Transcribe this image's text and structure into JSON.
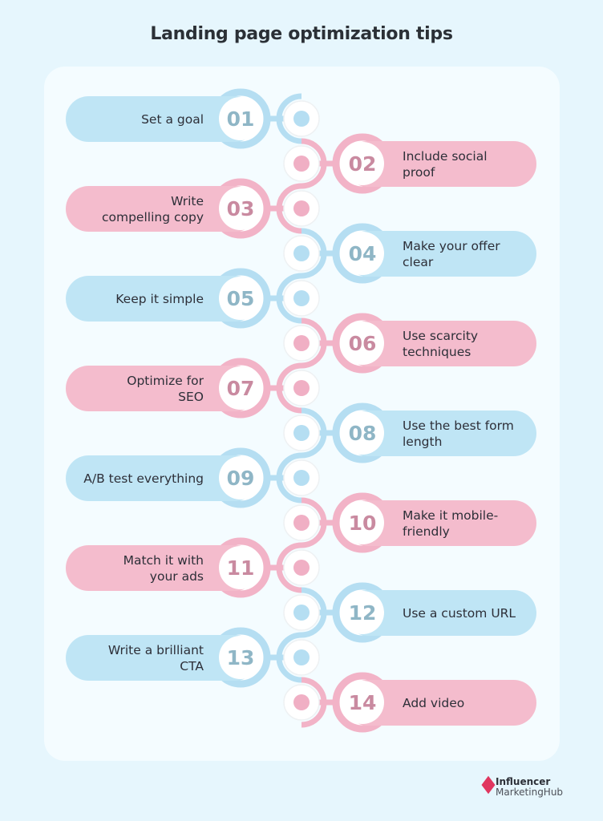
{
  "title": "Landing page optimization tips",
  "colors": {
    "background": "#e6f6fd",
    "card": "#f4fcff",
    "blue_fill": "#bfe5f5",
    "blue_ring": "#b5def2",
    "blue_number": "#8fb6c6",
    "pink_fill": "#f4bccd",
    "pink_ring": "#f2b3c7",
    "pink_number": "#c98aa0",
    "text": "#2d2f38",
    "logo_accent": "#e0365f"
  },
  "tips": [
    {
      "number": "01",
      "label": "Set a goal",
      "side": "left",
      "color": "blue"
    },
    {
      "number": "02",
      "label": "Include social proof",
      "side": "right",
      "color": "pink"
    },
    {
      "number": "03",
      "label": "Write compelling copy",
      "side": "left",
      "color": "pink"
    },
    {
      "number": "04",
      "label": "Make your offer clear",
      "side": "right",
      "color": "blue"
    },
    {
      "number": "05",
      "label": "Keep it simple",
      "side": "left",
      "color": "blue"
    },
    {
      "number": "06",
      "label": "Use scarcity techniques",
      "side": "right",
      "color": "pink"
    },
    {
      "number": "07",
      "label": "Optimize for SEO",
      "side": "left",
      "color": "pink"
    },
    {
      "number": "08",
      "label": "Use the best form length",
      "side": "right",
      "color": "blue"
    },
    {
      "number": "09",
      "label": "A/B test everything",
      "side": "left",
      "color": "blue"
    },
    {
      "number": "10",
      "label": "Make it mobile-friendly",
      "side": "right",
      "color": "pink"
    },
    {
      "number": "11",
      "label": "Match it with your ads",
      "side": "left",
      "color": "pink"
    },
    {
      "number": "12",
      "label": "Use a custom URL",
      "side": "right",
      "color": "blue"
    },
    {
      "number": "13",
      "label": "Write a brilliant CTA",
      "side": "left",
      "color": "blue"
    },
    {
      "number": "14",
      "label": "Add video",
      "side": "right",
      "color": "pink"
    }
  ],
  "tip_lines": [
    [
      "Set a goal"
    ],
    [
      "Include social",
      "proof"
    ],
    [
      "Write",
      "compelling copy"
    ],
    [
      "Make your offer",
      "clear"
    ],
    [
      "Keep it simple"
    ],
    [
      "Use scarcity",
      "techniques"
    ],
    [
      "Optimize for",
      "SEO"
    ],
    [
      "Use the best form",
      "length"
    ],
    [
      "A/B test everything"
    ],
    [
      "Make it mobile-",
      "friendly"
    ],
    [
      "Match it with",
      "your ads"
    ],
    [
      "Use a custom URL"
    ],
    [
      "Write a brilliant",
      "CTA"
    ],
    [
      "Add video"
    ]
  ],
  "logo": {
    "line1": "Influencer",
    "line2": "MarketingHub"
  }
}
